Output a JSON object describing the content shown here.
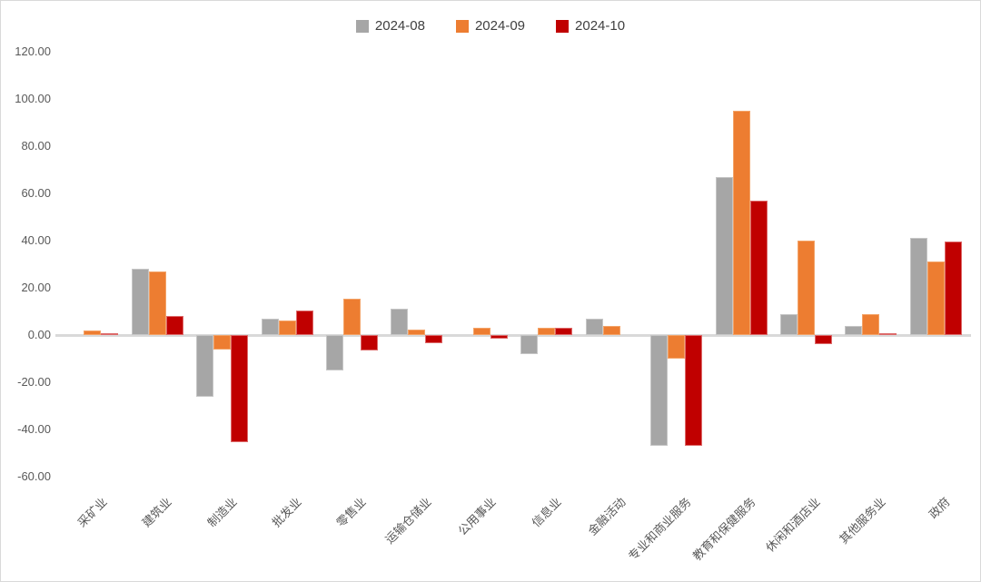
{
  "chart_data": {
    "type": "bar",
    "title": "",
    "xlabel": "",
    "ylabel": "",
    "legend_position": "top-center",
    "grid": false,
    "ylim": [
      -60,
      120
    ],
    "y_ticks": {
      "values": [
        120,
        100,
        80,
        60,
        40,
        20,
        0,
        -20,
        -40,
        -60
      ],
      "labels": [
        "120.00",
        "100.00",
        "80.00",
        "60.00",
        "40.00",
        "20.00",
        "0.00",
        "-20.00",
        "-40.00",
        "-60.00"
      ]
    },
    "categories": [
      "采矿业",
      "建筑业",
      "制造业",
      "批发业",
      "零售业",
      "运输仓储业",
      "公用事业",
      "信息业",
      "金融活动",
      "专业和商业服务",
      "教育和保健服务",
      "休闲和酒店业",
      "其他服务业",
      "政府"
    ],
    "series": [
      {
        "name": "2024-08",
        "color": "#a6a6a6",
        "border_color": "#c6c6c6",
        "values": [
          0,
          28,
          -26,
          7,
          -15,
          11,
          0,
          -8,
          7,
          -47,
          67,
          9,
          4,
          41
        ]
      },
      {
        "name": "2024-09",
        "color": "#ed7d31",
        "border_color": "#f3a368",
        "values": [
          1.8,
          27,
          -6,
          6,
          15.5,
          2.5,
          3,
          3,
          4,
          -10,
          95,
          40,
          9,
          31
        ]
      },
      {
        "name": "2024-10",
        "color": "#c00000",
        "border_color": "#dd6a6a",
        "values": [
          0.8,
          8,
          -45.5,
          10.5,
          -6.5,
          -3.5,
          -1.5,
          3,
          0,
          -47,
          57,
          -4,
          0.8,
          39.5
        ]
      }
    ]
  },
  "colors": {
    "axis_text": "#595959",
    "legend_text": "#404040",
    "zero_line": "#d9d9d9",
    "frame_border": "#d9d9d9",
    "background": "#ffffff"
  }
}
